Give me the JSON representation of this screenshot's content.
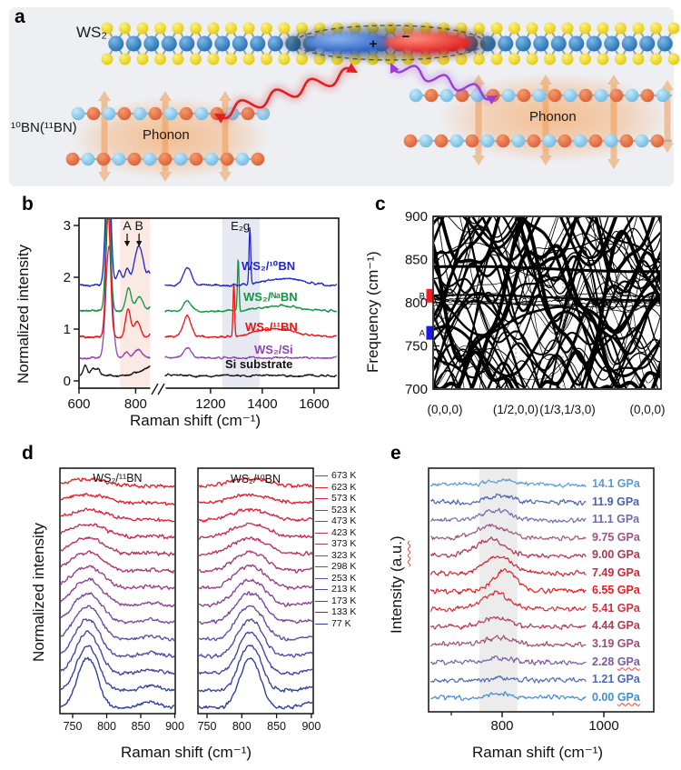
{
  "figure": {
    "panel_letters": {
      "a": "a",
      "b": "b",
      "c": "c",
      "d": "d",
      "e": "e"
    }
  },
  "panel_a": {
    "ws2_label": "WS₂",
    "bn_label": "¹⁰BN(¹¹BN)",
    "phonon_left": "Phonon",
    "phonon_right": "Phonon",
    "plus": "+",
    "minus": "−",
    "colors": {
      "background": "#edeff3",
      "w_atom": "#1b6aad",
      "s_atom": "#e3c70a",
      "b_atom": "#d95c33",
      "n_atom": "#68b6e2",
      "phonon_glow": "#f6ae72",
      "phonon_arrow": "#f09c55",
      "red_arrow": "#e02020",
      "purple_arrow": "#9b3fd1",
      "electron_cloud": "#1550bb",
      "hole_cloud": "#dd0e0e"
    }
  },
  "chart_data": [
    {
      "id": "b",
      "type": "line",
      "xlabel": "Raman shift (cm⁻¹)",
      "ylabel": "Normalized intensity",
      "xlim": [
        600,
        1690
      ],
      "x_break": [
        850,
        1025
      ],
      "ylim": [
        0,
        3.1
      ],
      "y_ticks": [
        0,
        1,
        2,
        3
      ],
      "x_ticks": [
        600,
        800,
        1200,
        1400,
        1600
      ],
      "shaded_bands": [
        {
          "from": 745,
          "to": 850,
          "color": "#fbe9e3"
        },
        {
          "from": 1245,
          "to": 1390,
          "color": "#e7e9f2"
        }
      ],
      "annotations": [
        {
          "text": "A",
          "x_cm": 770,
          "arrow": true
        },
        {
          "text": "B",
          "x_cm": 812,
          "arrow": true
        },
        {
          "text": "E₂g",
          "x_cm": 1315,
          "arrow": false
        }
      ],
      "series": [
        {
          "name": "WS₂/¹⁰BN",
          "color": "#2026c8",
          "offset": 1.85,
          "peaks": [
            [
              703,
              2.5,
              9
            ],
            [
              742,
              0.28,
              9
            ],
            [
              770,
              0.3,
              8
            ],
            [
              812,
              0.75,
              16
            ],
            [
              848,
              0.2,
              6
            ],
            [
              1110,
              0.33,
              16
            ],
            [
              1352,
              1.1,
              3.2
            ],
            [
              1480,
              0.13,
              70
            ]
          ]
        },
        {
          "name": "WS₂/ᴺᵃBN",
          "color": "#0f9443",
          "offset": 1.35,
          "peaks": [
            [
              703,
              2.6,
              8
            ],
            [
              775,
              0.45,
              9
            ],
            [
              813,
              0.26,
              14
            ],
            [
              856,
              0.1,
              8
            ],
            [
              1110,
              0.2,
              14
            ],
            [
              1307,
              1.0,
              3
            ],
            [
              1470,
              0.1,
              70
            ]
          ]
        },
        {
          "name": "WS₂/¹¹BN",
          "color": "#ee1111",
          "offset": 0.85,
          "peaks": [
            [
              703,
              2.4,
              8
            ],
            [
              773,
              0.55,
              9
            ],
            [
              806,
              0.3,
              11
            ],
            [
              858,
              0.14,
              7
            ],
            [
              1110,
              0.4,
              15
            ],
            [
              1290,
              1.05,
              3
            ],
            [
              1455,
              0.16,
              75
            ]
          ]
        },
        {
          "name": "WS₂/Si",
          "color": "#8e44ad",
          "offset": 0.45,
          "peaks": [
            [
              706,
              2.15,
              11
            ],
            [
              768,
              0.12,
              9
            ],
            [
              808,
              0.16,
              12
            ],
            [
              1110,
              0.2,
              14
            ]
          ]
        },
        {
          "name": "Si substrate",
          "color": "#111111",
          "offset": 0.1,
          "peaks": [
            [
              622,
              0.2,
              7
            ],
            [
              650,
              0.15,
              9
            ],
            [
              668,
              0.12,
              6
            ],
            [
              900,
              0.3,
              55
            ]
          ]
        }
      ]
    },
    {
      "id": "c",
      "type": "band_structure",
      "ylabel": "Frequency (cm⁻¹)",
      "ylim": [
        700,
        900
      ],
      "y_ticks": [
        900,
        850,
        800,
        750,
        700
      ],
      "qpath_labels": [
        "(0,0,0)",
        "(1/2,0,0)",
        "(1/3,1/3,0)",
        "(0,0,0)"
      ],
      "markers": [
        {
          "label": "B",
          "freq_cm": 808,
          "color": "#ee2222"
        },
        {
          "label": "A",
          "freq_cm": 765,
          "color": "#1a1ae6"
        }
      ],
      "description": "Calculated phonon dispersion of BN: dense black branches along the q-path, dotted vertical lines at interior high-symmetry points"
    },
    {
      "id": "d",
      "type": "stacked_line",
      "xlabel": "Raman shift (cm⁻¹)",
      "ylabel": "Normalized intensity",
      "xlim": [
        731,
        910
      ],
      "x_ticks": [
        750,
        800,
        850,
        900
      ],
      "panels": [
        {
          "title": "WS₂/¹¹BN",
          "peak_center_cm": 772
        },
        {
          "title": "WS₂/¹⁰BN",
          "peak_center_cm": 812
        }
      ],
      "temperatures": [
        {
          "label": "673 K",
          "color": "#ec1c24"
        },
        {
          "label": "623 K",
          "color": "#e41f31"
        },
        {
          "label": "573 K",
          "color": "#d8243f"
        },
        {
          "label": "523 K",
          "color": "#cb294f"
        },
        {
          "label": "473 K",
          "color": "#bc2f60"
        },
        {
          "label": "423 K",
          "color": "#ad3570"
        },
        {
          "label": "373 K",
          "color": "#9c3c80"
        },
        {
          "label": "323 K",
          "color": "#8a4290"
        },
        {
          "label": "298 K",
          "color": "#78479c"
        },
        {
          "label": "253 K",
          "color": "#6549a4"
        },
        {
          "label": "213 K",
          "color": "#5346a6"
        },
        {
          "label": "173 K",
          "color": "#4243a3"
        },
        {
          "label": "133 K",
          "color": "#35409f"
        },
        {
          "label": "77 K",
          "color": "#2b3c9b"
        }
      ]
    },
    {
      "id": "e",
      "type": "stacked_line",
      "xlabel": "Raman shift (cm⁻¹)",
      "ylabel": "Intensity (a.u.)",
      "ylabel_parts": {
        "pre": "Intensity (",
        "au": "a.u.",
        "post": ")"
      },
      "xlim": [
        629,
        1110
      ],
      "x_ticks": [
        800,
        1000
      ],
      "x_minor_ticks": [
        700,
        900
      ],
      "shaded_band": {
        "from_cm": 755,
        "to_cm": 830,
        "color": "#ececec"
      },
      "series": [
        {
          "label": "14.1 GPa",
          "color": "#5b9bd5",
          "peak_amp": 5,
          "peak_center": 800,
          "sigma": 22,
          "underline": false
        },
        {
          "label": "11.9 GPa",
          "color": "#4a63ad",
          "peak_amp": 8,
          "peak_center": 795,
          "sigma": 24,
          "underline": false
        },
        {
          "label": "11.1 GPa",
          "color": "#7a67a8",
          "peak_amp": 11,
          "peak_center": 788,
          "sigma": 26,
          "underline": false
        },
        {
          "label": "9.75 GPa",
          "color": "#9e5480",
          "peak_amp": 14,
          "peak_center": 780,
          "sigma": 27,
          "underline": false
        },
        {
          "label": "9.00 GPa",
          "color": "#b13553",
          "peak_amp": 18,
          "peak_center": 776,
          "sigma": 28,
          "underline": false
        },
        {
          "label": "7.49 GPa",
          "color": "#cc2738",
          "peak_amp": 20,
          "peak_center": 793,
          "sigma": 26,
          "underline": false
        },
        {
          "label": "6.55 GPa",
          "color": "#ee1b22",
          "peak_amp": 23,
          "peak_center": 806,
          "sigma": 22,
          "underline": false
        },
        {
          "label": "5.41 GPa",
          "color": "#d62f3e",
          "peak_amp": 17,
          "peak_center": 788,
          "sigma": 26,
          "underline": false
        },
        {
          "label": "4.44 GPa",
          "color": "#b23a52",
          "peak_amp": 10,
          "peak_center": 789,
          "sigma": 26,
          "underline": false
        },
        {
          "label": "3.19 GPa",
          "color": "#9e4d74",
          "peak_amp": 8,
          "peak_center": 794,
          "sigma": 24,
          "underline": false
        },
        {
          "label": "2.28 GPa",
          "color": "#7a5ca0",
          "peak_amp": 5,
          "peak_center": 800,
          "sigma": 22,
          "underline": true
        },
        {
          "label": "1.21 GPa",
          "color": "#4f6ab2",
          "peak_amp": 3,
          "peak_center": 800,
          "sigma": 20,
          "underline": false
        },
        {
          "label": "0.00 GPa",
          "color": "#3f8ed6",
          "peak_amp": 5,
          "peak_center": 792,
          "sigma": 20,
          "underline": true
        }
      ]
    }
  ]
}
